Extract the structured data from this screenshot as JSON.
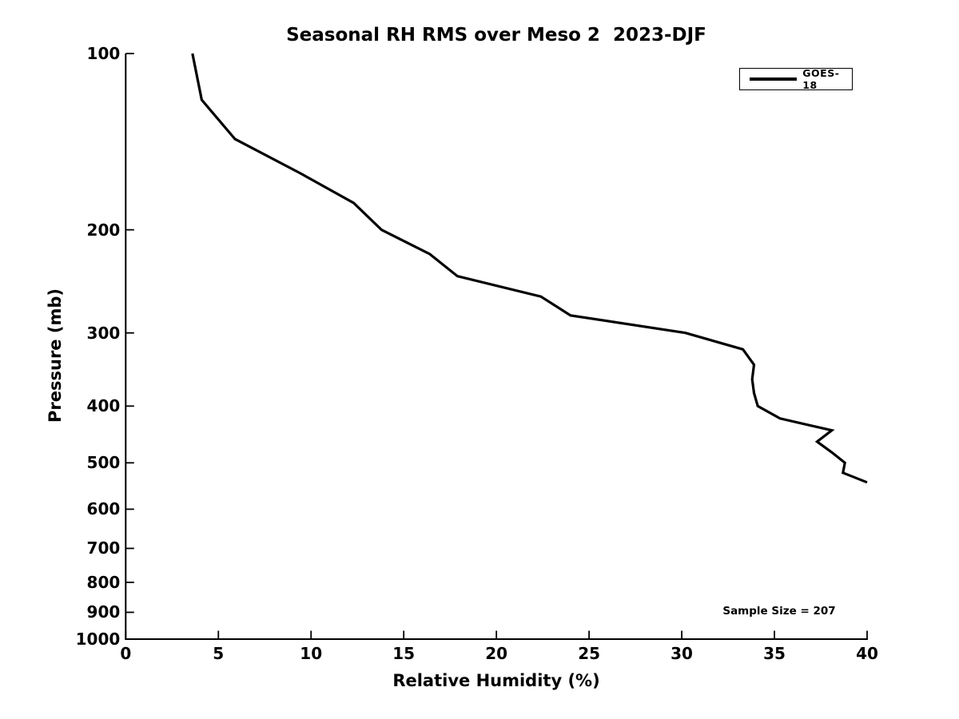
{
  "chart_data": {
    "type": "line",
    "title": "Seasonal RH RMS over Meso 2  2023-DJF",
    "xlabel": "Relative Humidity (%)",
    "ylabel": "Pressure (mb)",
    "xlim": [
      0,
      40
    ],
    "ylim": [
      1000,
      100
    ],
    "y_scale": "log",
    "x_ticks": [
      0,
      5,
      10,
      15,
      20,
      25,
      30,
      35,
      40
    ],
    "y_ticks": [
      100,
      200,
      300,
      400,
      500,
      600,
      700,
      800,
      900,
      1000
    ],
    "grid": "off",
    "legend": {
      "position": "upper-right",
      "entries": [
        "GOES-18"
      ]
    },
    "annotation": "Sample Size = 207",
    "series": [
      {
        "name": "GOES-18",
        "color": "#000000",
        "pressure_mb": [
          100,
          120,
          140,
          160,
          180,
          200,
          220,
          240,
          260,
          280,
          300,
          320,
          340,
          360,
          380,
          400,
          420,
          440,
          460,
          480,
          500,
          520,
          540
        ],
        "rh_rms_percent": [
          3.6,
          4.1,
          5.9,
          9.4,
          12.3,
          13.8,
          16.4,
          17.9,
          22.4,
          24.0,
          30.2,
          33.3,
          33.9,
          33.8,
          33.9,
          34.1,
          35.3,
          38.1,
          37.3,
          38.1,
          38.8,
          38.7,
          40.0
        ]
      }
    ]
  },
  "colors": {
    "line": "#000000",
    "axis": "#000000",
    "text": "#000000",
    "background": "#ffffff"
  }
}
